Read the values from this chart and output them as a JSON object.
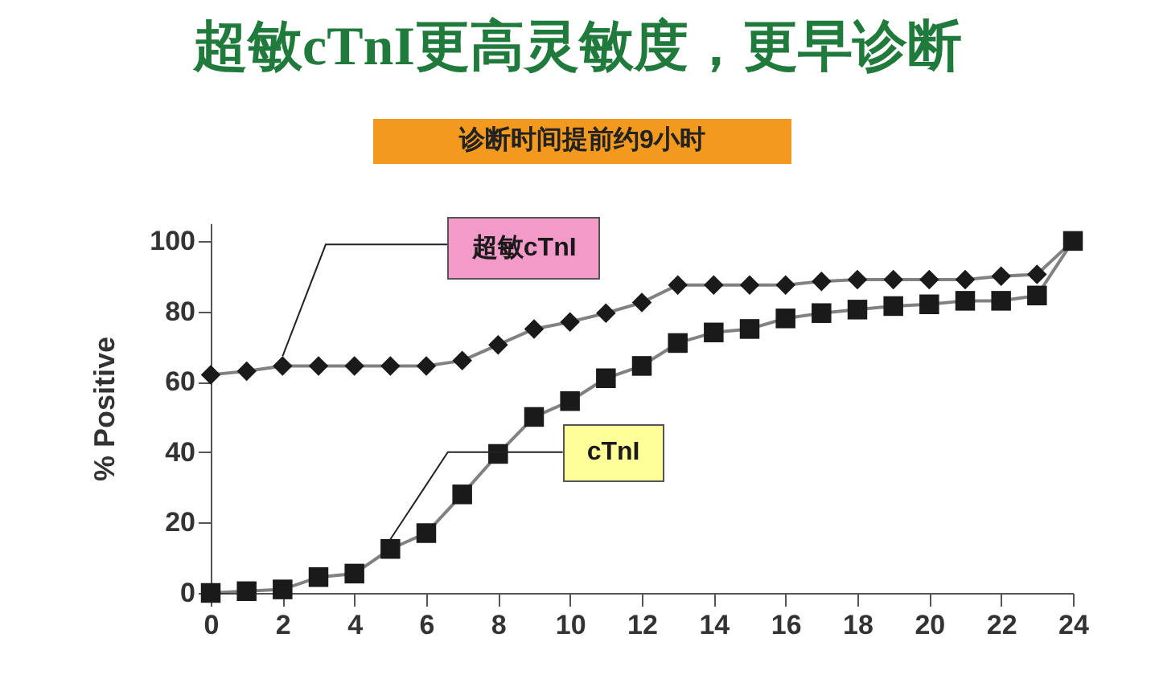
{
  "chart_data": {
    "type": "line",
    "title": "超敏cTnI更高灵敏度，更早诊断",
    "subtitle": "诊断时间提前约9小时",
    "ylabel": "% Positive",
    "x": [
      0,
      1,
      2,
      3,
      4,
      5,
      6,
      7,
      8,
      9,
      10,
      11,
      12,
      13,
      14,
      15,
      16,
      17,
      18,
      19,
      20,
      21,
      22,
      23,
      24
    ],
    "series": [
      {
        "name": "超敏cTnI",
        "color": "#1a1a1a",
        "marker": "diamond",
        "values": [
          62,
          63,
          64.5,
          64.5,
          64.5,
          64.5,
          64.5,
          66,
          70.5,
          75,
          77,
          79.5,
          82.5,
          87.5,
          87.5,
          87.5,
          87.5,
          88.5,
          89,
          89,
          89,
          89,
          90,
          90.5,
          100
        ]
      },
      {
        "name": "cTnI",
        "color": "#1a1a1a",
        "marker": "square",
        "values": [
          0,
          0.5,
          1,
          4.5,
          5.5,
          12.5,
          17,
          28,
          39.5,
          50,
          54.5,
          61,
          64.5,
          71,
          74,
          75,
          78,
          79.5,
          80.5,
          81.5,
          82,
          83,
          83,
          84.5,
          100
        ]
      }
    ],
    "xlim": [
      0,
      24
    ],
    "xticks": [
      0,
      2,
      4,
      6,
      8,
      10,
      12,
      14,
      16,
      18,
      20,
      22,
      24
    ],
    "ylim": [
      0,
      105
    ],
    "yticks": [
      0,
      20,
      40,
      60,
      80,
      100
    ],
    "grid": false,
    "legend": false,
    "line_style": "solid"
  }
}
